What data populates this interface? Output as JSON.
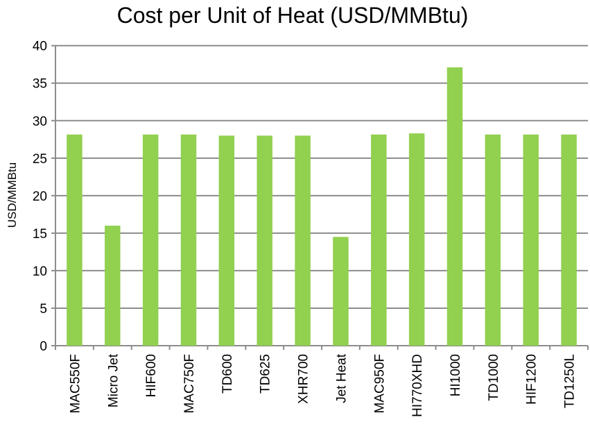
{
  "chart_data": {
    "type": "bar",
    "title": "Cost per Unit of Heat (USD/MMBtu)",
    "xlabel": "",
    "ylabel": "USD/MMBtu",
    "ylim": [
      0,
      40
    ],
    "yticks": [
      0,
      5,
      10,
      15,
      20,
      25,
      30,
      35,
      40
    ],
    "grid": true,
    "legend": "none",
    "bar_color": "#92d050",
    "categories": [
      "MAC550F",
      "Micro Jet",
      "HIF600",
      "MAC750F",
      "TD600",
      "TD625",
      "XHR700",
      "Jet Heat",
      "MAC950F",
      "HI770XHD",
      "HI1000",
      "TD1000",
      "HIF1200",
      "TD1250L"
    ],
    "values": [
      28.15,
      16.0,
      28.15,
      28.15,
      28.0,
      28.0,
      28.0,
      14.5,
      28.15,
      28.3,
      37.1,
      28.15,
      28.15,
      28.15
    ]
  }
}
